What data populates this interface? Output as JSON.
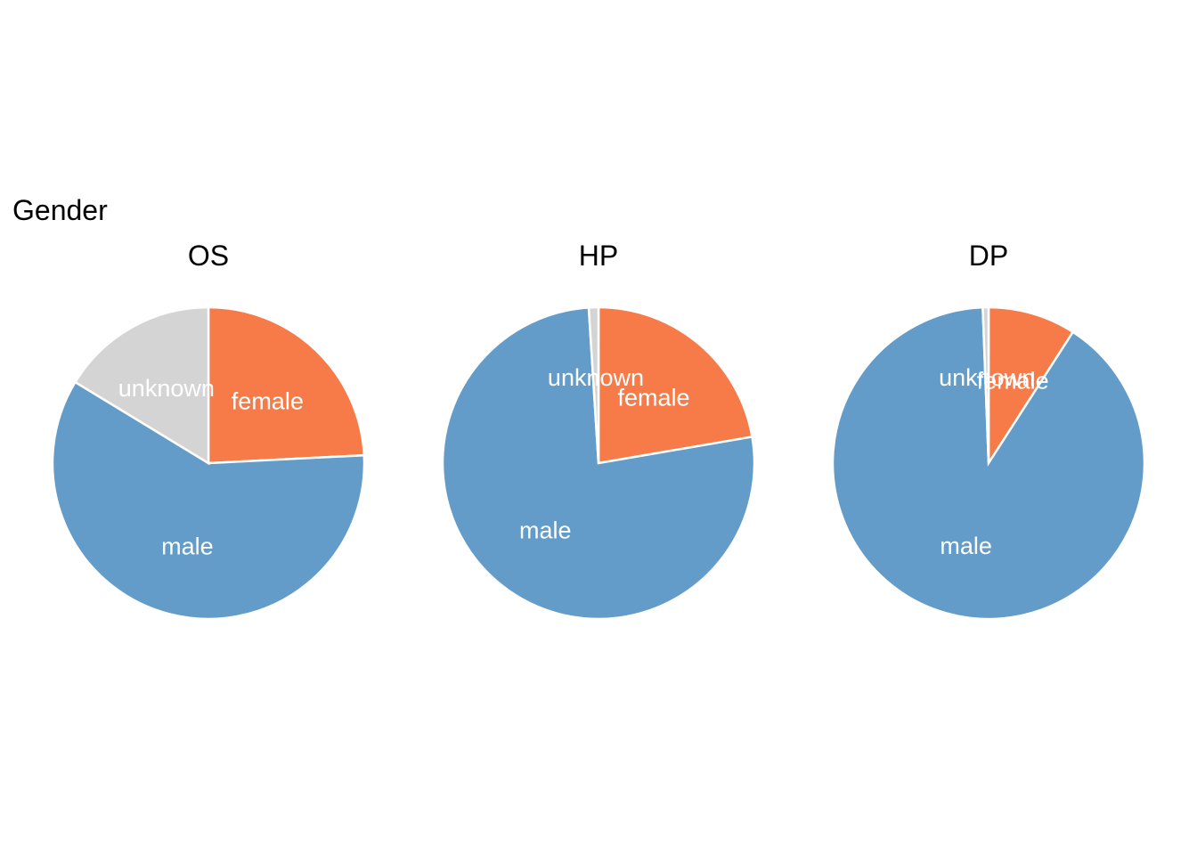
{
  "chart_data": {
    "type": "pie",
    "title": "Gender",
    "colors": {
      "female": "#F77B48",
      "male": "#639CC8",
      "unknown": "#D4D4D4"
    },
    "panels": [
      {
        "name": "OS",
        "slices": [
          {
            "label": "female",
            "value": 24.2
          },
          {
            "label": "male",
            "value": 59.5
          },
          {
            "label": "unknown",
            "value": 16.3
          }
        ]
      },
      {
        "name": "HP",
        "slices": [
          {
            "label": "female",
            "value": 22.3
          },
          {
            "label": "male",
            "value": 76.7
          },
          {
            "label": "unknown",
            "value": 1.0
          }
        ]
      },
      {
        "name": "DP",
        "slices": [
          {
            "label": "female",
            "value": 9.1
          },
          {
            "label": "male",
            "value": 90.3
          },
          {
            "label": "unknown",
            "value": 0.6
          }
        ]
      }
    ]
  }
}
